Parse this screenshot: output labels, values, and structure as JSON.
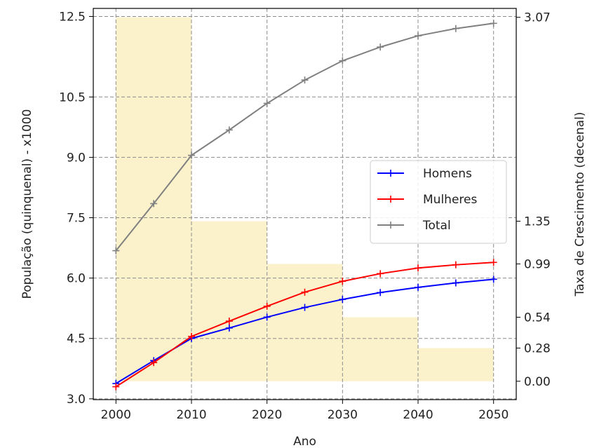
{
  "chart_data": {
    "type": "line",
    "xlabel": "Ano",
    "ylabel": "População (quinquenal) - x1000",
    "ylabel_right": "Taxa de Crescimento (decenal)",
    "x": [
      2000,
      2005,
      2010,
      2015,
      2020,
      2025,
      2030,
      2035,
      2040,
      2045,
      2050
    ],
    "xticks": [
      "2000",
      "2010",
      "2020",
      "2030",
      "2040",
      "2050"
    ],
    "xlim": [
      1997,
      2053
    ],
    "yticks_left": [
      "3.0",
      "4.5",
      "6.0",
      "7.5",
      "9.0",
      "10.5",
      "12.5"
    ],
    "yticks_left_values": [
      3.0,
      4.5,
      6.0,
      7.5,
      9.0,
      10.5,
      12.5
    ],
    "ylim_left": [
      2.98,
      12.7
    ],
    "yticks_right": [
      "0.00",
      "0.28",
      "0.54",
      "0.99",
      "1.35",
      "3.07"
    ],
    "yticks_right_values": [
      0.0,
      0.28,
      0.54,
      0.99,
      1.35,
      3.07
    ],
    "ylim_right": [
      -0.155,
      3.145
    ],
    "series": [
      {
        "name": "Homens",
        "color": "#0000ff",
        "values": [
          3.38,
          3.95,
          4.5,
          4.76,
          5.03,
          5.27,
          5.47,
          5.64,
          5.77,
          5.88,
          5.97
        ]
      },
      {
        "name": "Mulheres",
        "color": "#ff0000",
        "values": [
          3.3,
          3.9,
          4.55,
          4.93,
          5.3,
          5.65,
          5.92,
          6.11,
          6.25,
          6.33,
          6.39
        ]
      },
      {
        "name": "Total",
        "color": "#808080",
        "values": [
          6.68,
          7.85,
          9.05,
          9.68,
          10.34,
          10.92,
          11.4,
          11.74,
          12.02,
          12.2,
          12.33
        ]
      }
    ],
    "bars": {
      "axis": "right",
      "color": "#fbf2cc",
      "bins": [
        {
          "from": 2000,
          "to": 2010,
          "value": 3.07
        },
        {
          "from": 2010,
          "to": 2020,
          "value": 1.35
        },
        {
          "from": 2020,
          "to": 2030,
          "value": 0.99
        },
        {
          "from": 2030,
          "to": 2040,
          "value": 0.54
        },
        {
          "from": 2040,
          "to": 2050,
          "value": 0.28
        }
      ]
    },
    "grid": true,
    "legend_position": "center-right"
  }
}
